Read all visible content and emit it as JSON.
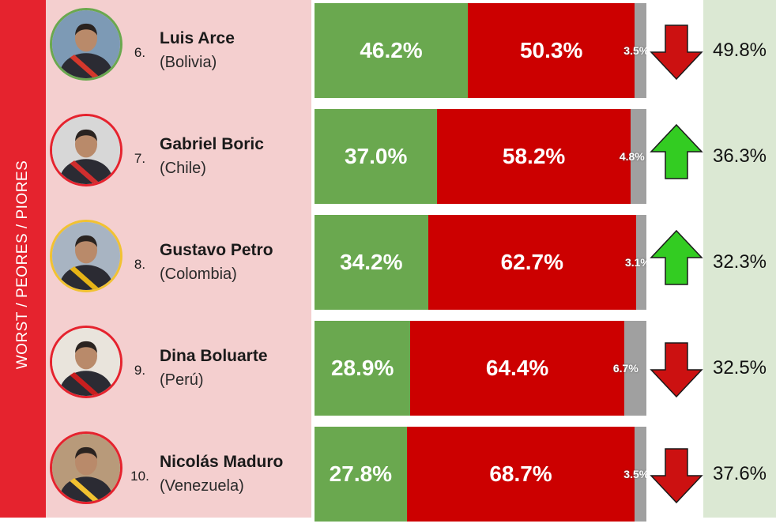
{
  "side_label": "WORST / PEORES / PIORES",
  "colors": {
    "approve": "#6aa84f",
    "disapprove": "#cc0000",
    "no_response": "#a0a0a0",
    "side_band": "#e5232e",
    "names_panel": "#f4cfcf",
    "approval_column": "#dbe8d3",
    "arrow_up": "#33cc22",
    "arrow_down": "#cc1111"
  },
  "leaders": [
    {
      "rank": "6.",
      "name": "Luis Arce",
      "country": "(Bolivia)",
      "approve": "46.2%",
      "disapprove": "50.3%",
      "no_response": "3.5%",
      "trend": "down",
      "trend_icon": "arrow-down-icon",
      "prev_approval": "49.8%",
      "avatar_ring": "#6aa84f"
    },
    {
      "rank": "7.",
      "name": "Gabriel Boric",
      "country": "(Chile)",
      "approve": "37.0%",
      "disapprove": "58.2%",
      "no_response": "4.8%",
      "trend": "up",
      "trend_icon": "arrow-up-icon",
      "prev_approval": "36.3%",
      "avatar_ring": "#e5232e"
    },
    {
      "rank": "8.",
      "name": "Gustavo Petro",
      "country": "(Colombia)",
      "approve": "34.2%",
      "disapprove": "62.7%",
      "no_response": "3.1%",
      "trend": "up",
      "trend_icon": "arrow-up-icon",
      "prev_approval": "32.3%",
      "avatar_ring": "#f1c232"
    },
    {
      "rank": "9.",
      "name": "Dina Boluarte",
      "country": "(Perú)",
      "approve": "28.9%",
      "disapprove": "64.4%",
      "no_response": "6.7%",
      "trend": "down",
      "trend_icon": "arrow-down-icon",
      "prev_approval": "32.5%",
      "avatar_ring": "#e5232e"
    },
    {
      "rank": "10.",
      "name": "Nicolás Maduro",
      "country": "(Venezuela)",
      "approve": "27.8%",
      "disapprove": "68.7%",
      "no_response": "3.5%",
      "trend": "down",
      "trend_icon": "arrow-down-icon",
      "prev_approval": "37.6%",
      "avatar_ring": "#e5232e"
    }
  ],
  "chart_data": {
    "type": "bar",
    "stacked": true,
    "orientation": "horizontal",
    "categories": [
      "Luis Arce",
      "Gabriel Boric",
      "Gustavo Petro",
      "Dina Boluarte",
      "Nicolás Maduro"
    ],
    "series": [
      {
        "values": [
          46.2,
          37.0,
          34.2,
          28.9,
          27.8
        ]
      },
      {
        "values": [
          50.3,
          58.2,
          62.7,
          64.4,
          68.7
        ]
      },
      {
        "values": [
          3.5,
          4.8,
          3.1,
          6.7,
          3.5
        ]
      }
    ],
    "previous_approval": [
      49.8,
      36.3,
      32.3,
      32.5,
      37.6
    ],
    "xlim": [
      0,
      100
    ],
    "legend": "none"
  }
}
